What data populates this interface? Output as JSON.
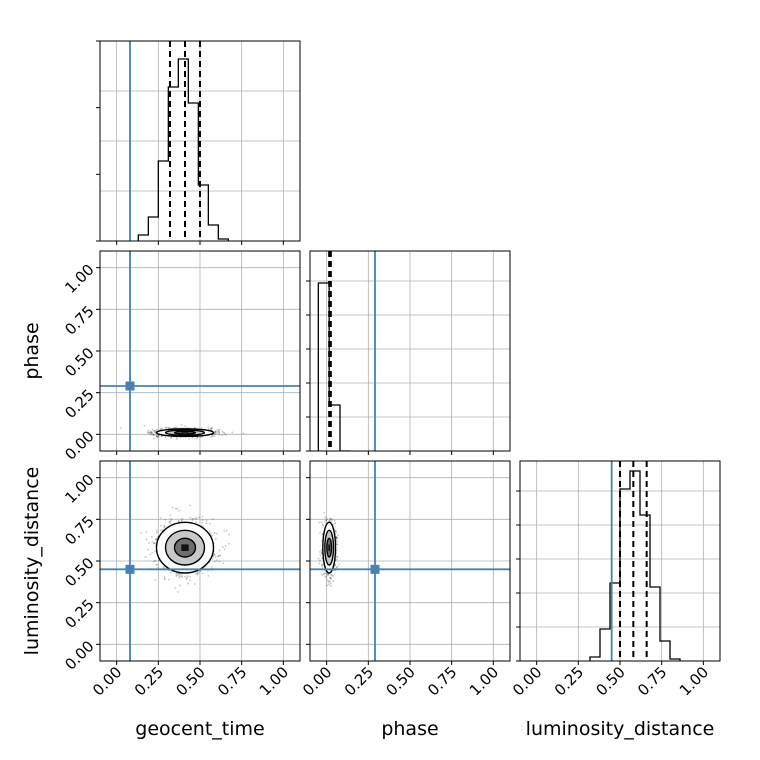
{
  "chart_data": {
    "type": "corner",
    "parameters": [
      "geocent_time",
      "phase",
      "luminosity_distance"
    ],
    "axis_range": [
      -0.1,
      1.1
    ],
    "ticks": [
      0.0,
      0.25,
      0.5,
      0.75,
      1.0
    ],
    "tick_labels": [
      "0.00",
      "0.25",
      "0.50",
      "0.75",
      "1.00"
    ],
    "grid": true,
    "truth_color": "#4682b4",
    "truths": {
      "geocent_time": 0.08,
      "phase": 0.29,
      "luminosity_distance": 0.45
    },
    "marginals": [
      {
        "parameter": "geocent_time",
        "bin_edges": [
          0.13,
          0.19,
          0.25,
          0.31,
          0.37,
          0.43,
          0.49,
          0.55,
          0.61,
          0.67
        ],
        "counts": [
          0.03,
          0.12,
          0.4,
          0.77,
          0.91,
          0.69,
          0.28,
          0.08,
          0.01
        ],
        "quantiles": [
          0.32,
          0.41,
          0.5
        ]
      },
      {
        "parameter": "phase",
        "bin_edges": [
          -0.05,
          0.015,
          0.08,
          0.145
        ],
        "counts": [
          0.84,
          0.23,
          0.0
        ],
        "quantiles": [
          0.015,
          0.025
        ]
      },
      {
        "parameter": "luminosity_distance",
        "bin_edges": [
          0.32,
          0.38,
          0.44,
          0.5,
          0.56,
          0.62,
          0.68,
          0.74,
          0.8,
          0.86
        ],
        "counts": [
          0.02,
          0.16,
          0.39,
          0.86,
          0.95,
          0.73,
          0.37,
          0.1,
          0.01
        ],
        "quantiles": [
          0.5,
          0.58,
          0.66
        ]
      }
    ],
    "joint": [
      {
        "x": "geocent_time",
        "y": "phase",
        "center": [
          0.41,
          0.01
        ],
        "spread": [
          0.09,
          0.012
        ],
        "contour_radii": [
          0.7,
          1.3,
          1.9
        ]
      },
      {
        "x": "geocent_time",
        "y": "luminosity_distance",
        "center": [
          0.41,
          0.58
        ],
        "spread": [
          0.09,
          0.08
        ],
        "contour_radii": [
          0.7,
          1.3,
          1.9
        ]
      },
      {
        "x": "phase",
        "y": "luminosity_distance",
        "center": [
          0.015,
          0.58
        ],
        "spread": [
          0.02,
          0.08
        ],
        "contour_radii": [
          0.7,
          1.3,
          1.9
        ]
      }
    ]
  }
}
